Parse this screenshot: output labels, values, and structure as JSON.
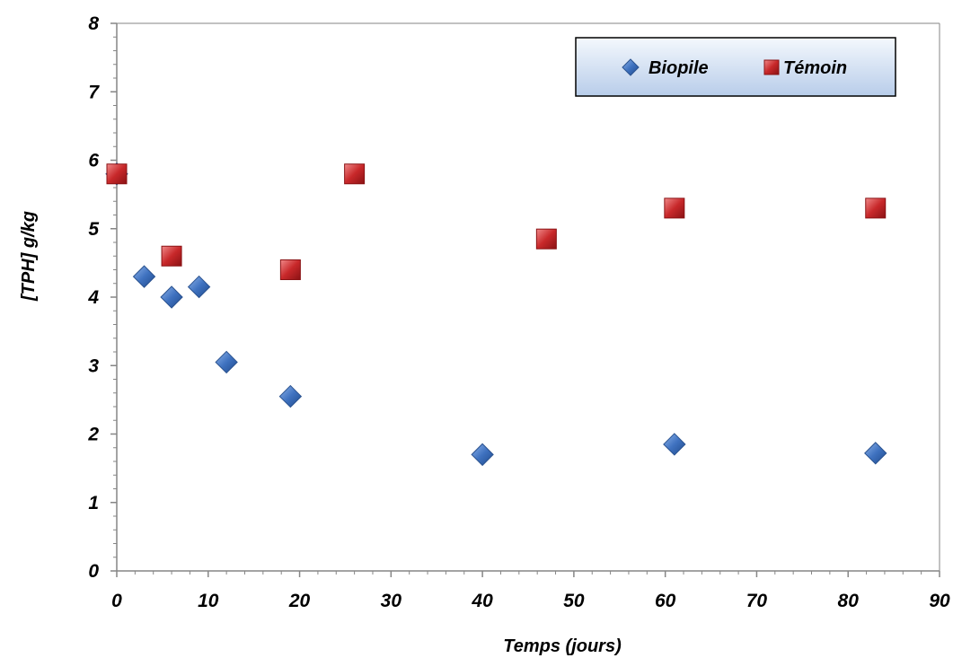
{
  "chart_data": {
    "type": "scatter",
    "xlabel": "Temps (jours)",
    "ylabel": "[TPH] g/kg",
    "xlim": [
      0,
      90
    ],
    "ylim": [
      0,
      8
    ],
    "xticks": [
      "0",
      "10",
      "20",
      "30",
      "40",
      "50",
      "60",
      "70",
      "80",
      "90"
    ],
    "yticks": [
      "0",
      "1",
      "2",
      "3",
      "4",
      "5",
      "6",
      "7",
      "8"
    ],
    "grid": false,
    "legend_position": "top-right",
    "series": [
      {
        "name": "Biopile",
        "marker": "diamond",
        "color": "#3f72c0",
        "x": [
          0,
          3,
          6,
          9,
          12,
          19,
          40,
          61,
          83
        ],
        "y": [
          5.8,
          4.3,
          4.0,
          4.15,
          3.05,
          2.55,
          1.7,
          1.85,
          1.72
        ]
      },
      {
        "name": "Témoin",
        "marker": "square",
        "color": "#c8282a",
        "x": [
          0,
          6,
          19,
          26,
          47,
          61,
          83
        ],
        "y": [
          5.8,
          4.6,
          4.4,
          5.8,
          4.85,
          5.3,
          5.3
        ]
      }
    ]
  }
}
